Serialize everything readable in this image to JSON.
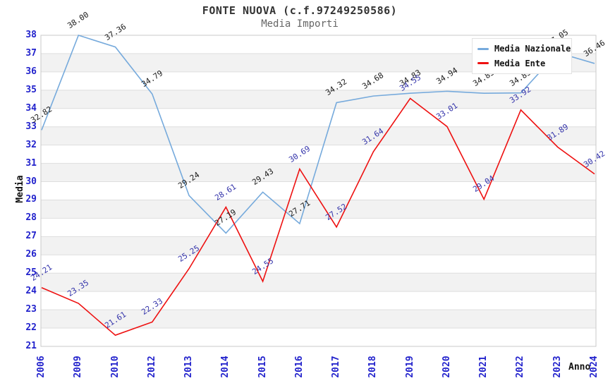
{
  "header": {
    "title": "FONTE NUOVA (c.f.97249250586)",
    "subtitle": "Media Importi"
  },
  "axes": {
    "y_title": "Media",
    "x_title": "Anno",
    "y_min": 21,
    "y_max": 38,
    "y_step": 1,
    "y_tick_color": "#2222cc",
    "x_tick_color": "#2222cc"
  },
  "legend": {
    "position": "top-right",
    "items": [
      {
        "label": "Media Nazionale",
        "color": "#76aadc"
      },
      {
        "label": "Media Ente",
        "color": "#ee1111"
      }
    ]
  },
  "chart_data": {
    "type": "line",
    "title": "FONTE NUOVA (c.f.97249250586)",
    "subtitle": "Media Importi",
    "xlabel": "Anno",
    "ylabel": "Media",
    "ylim": [
      21,
      38
    ],
    "grid": "horizontal-bands",
    "band_color": "#f2f2f2",
    "gridline_color": "#dedede",
    "frame_color": "#c9c9c9",
    "legend_position": "top-right",
    "categories": [
      "2006",
      "2009",
      "2010",
      "2012",
      "2013",
      "2014",
      "2015",
      "2016",
      "2017",
      "2018",
      "2019",
      "2020",
      "2021",
      "2022",
      "2023",
      "2024"
    ],
    "series": [
      {
        "name": "Media Nazionale",
        "color": "#76aadc",
        "label_color": "#1a1a1a",
        "values": [
          32.82,
          38.0,
          37.36,
          34.79,
          29.24,
          27.19,
          29.43,
          27.71,
          34.32,
          34.68,
          34.83,
          34.94,
          34.83,
          34.85,
          37.05,
          36.46
        ]
      },
      {
        "name": "Media Ente",
        "color": "#ee1111",
        "label_color": "#3333aa",
        "values": [
          24.21,
          23.35,
          21.61,
          22.33,
          25.25,
          28.61,
          24.55,
          30.69,
          27.52,
          31.64,
          34.55,
          33.01,
          29.04,
          33.92,
          31.89,
          30.42
        ]
      }
    ]
  }
}
